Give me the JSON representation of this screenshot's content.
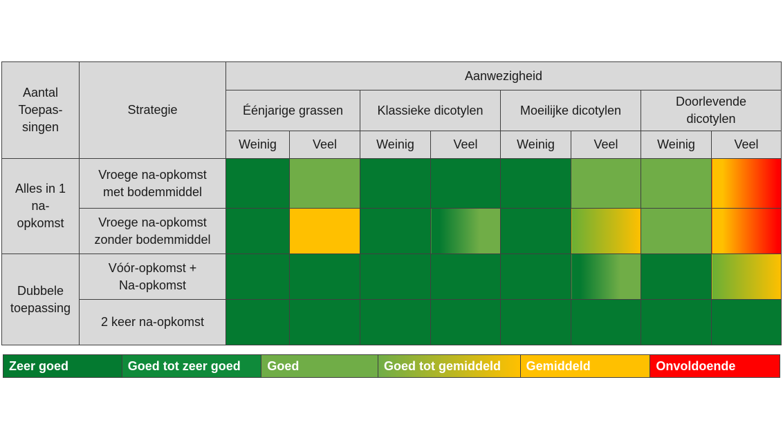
{
  "header": {
    "aantal": "Aantal\nToepas-\nsingen",
    "strategie": "Strategie",
    "aanwezigheid": "Aanwezigheid",
    "groups": [
      "Éénjarige grassen",
      "Klassieke dicotylen",
      "Moeilijke dicotylen",
      "Doorlevende\ndicotylen"
    ],
    "sub": [
      "Weinig",
      "Veel",
      "Weinig",
      "Veel",
      "Weinig",
      "Veel",
      "Weinig",
      "Veel"
    ]
  },
  "groups": [
    {
      "label": "Alles in 1\nna-\nopkomst",
      "rows": [
        0,
        1
      ]
    },
    {
      "label": "Dubbele\ntoepassing",
      "rows": [
        2,
        3
      ]
    }
  ],
  "rows": [
    {
      "strategy": "Vroege na-opkomst\nmet bodemmiddel",
      "ratings": [
        "zeer_goed",
        "goed",
        "zeer_goed",
        "zeer_goed",
        "zeer_goed",
        "goed",
        "goed",
        "gemiddeld-onvoldoende"
      ]
    },
    {
      "strategy": "Vroege na-opkomst\nzonder bodemmiddel",
      "ratings": [
        "zeer_goed",
        "gemiddeld",
        "zeer_goed",
        "zeer_goed-goed",
        "zeer_goed",
        "goed_tot_gemiddeld",
        "goed",
        "gemiddeld-onvoldoende"
      ]
    },
    {
      "strategy": "Vóór-opkomst +\nNa-opkomst",
      "ratings": [
        "zeer_goed",
        "zeer_goed",
        "zeer_goed",
        "zeer_goed",
        "zeer_goed",
        "zeer_goed-goed",
        "zeer_goed",
        "goed_tot_gemiddeld"
      ]
    },
    {
      "strategy": "2 keer na-opkomst",
      "ratings": [
        "zeer_goed",
        "zeer_goed",
        "zeer_goed",
        "zeer_goed",
        "zeer_goed",
        "zeer_goed",
        "zeer_goed",
        "zeer_goed"
      ]
    }
  ],
  "colors": {
    "zeer_goed": "#047a30",
    "goed_tot_zeer_goed": "#0f8a3a",
    "goed": "#70ad47",
    "goed_tot_gemiddeld_from": "#6aaf35",
    "gemiddeld": "#ffc000",
    "onvoldoende": "#ff0000"
  },
  "legend": [
    {
      "label": "Zeer goed",
      "color": "#047a30"
    },
    {
      "label": "Goed tot zeer goed",
      "color": "#0f8a3a"
    },
    {
      "label": "Goed",
      "color": "#70ad47"
    },
    {
      "label": "Goed tot gemiddeld",
      "gradient": [
        "#70ad47",
        "#ffc000"
      ]
    },
    {
      "label": "Gemiddeld",
      "color": "#ffc000"
    },
    {
      "label": "Onvoldoende",
      "color": "#ff0000"
    }
  ]
}
